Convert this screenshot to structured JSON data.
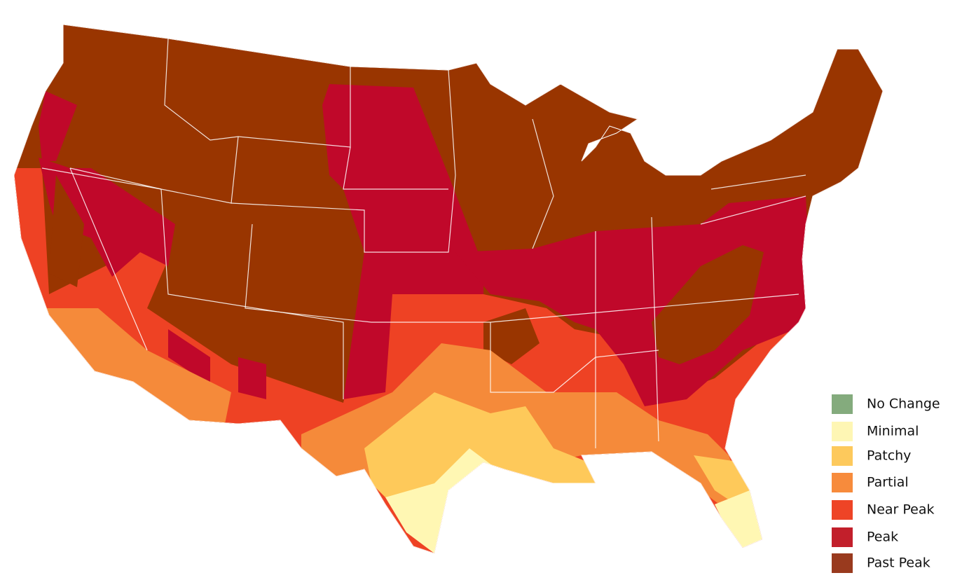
{
  "legend": {
    "items": [
      {
        "label": "No Change",
        "color": "#84ab7d"
      },
      {
        "label": "Minimal",
        "color": "#fef6b4"
      },
      {
        "label": "Patchy",
        "color": "#fdc95c"
      },
      {
        "label": "Partial",
        "color": "#f78b3c"
      },
      {
        "label": "Near Peak",
        "color": "#ee4426"
      },
      {
        "label": "Peak",
        "color": "#c21f2b"
      },
      {
        "label": "Past Peak",
        "color": "#993a1e"
      }
    ]
  }
}
